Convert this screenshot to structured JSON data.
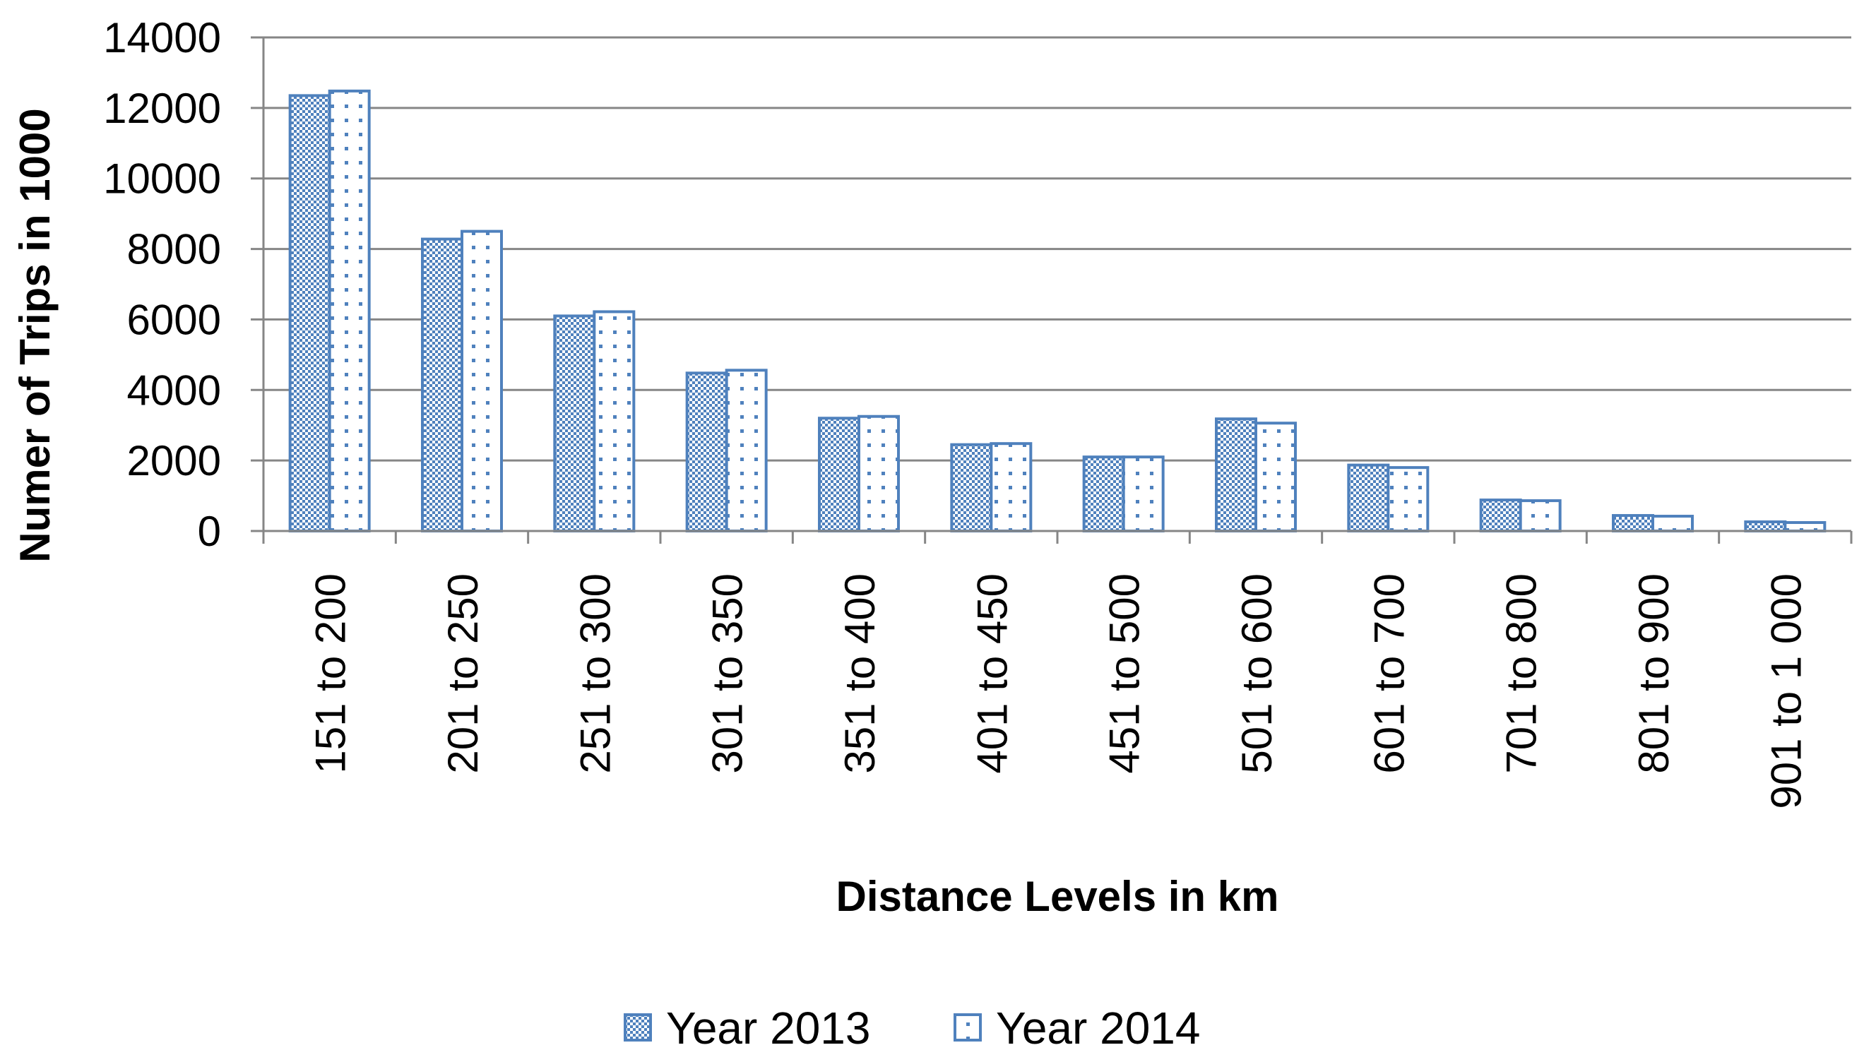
{
  "chart_data": {
    "type": "bar",
    "categories": [
      "151 to 200",
      "201 to 250",
      "251 to 300",
      "301 to 350",
      "351 to 400",
      "401 to 450",
      "451 to 500",
      "501 to 600",
      "601 to 700",
      "701 to 800",
      "801 to 900",
      "901 to 1 000"
    ],
    "series": [
      {
        "name": "Year 2013",
        "values": [
          12350,
          8280,
          6100,
          4480,
          3200,
          2450,
          2100,
          3180,
          1870,
          880,
          440,
          260
        ],
        "color": "#4f81bd",
        "pattern": "checkered"
      },
      {
        "name": "Year 2014",
        "values": [
          12480,
          8500,
          6220,
          4560,
          3250,
          2480,
          2100,
          3060,
          1800,
          860,
          420,
          240
        ],
        "color": "#4f81bd",
        "pattern": "dotted"
      }
    ],
    "xlabel": "Distance Levels in km",
    "ylabel": "Numer of Trips in 1000",
    "ylim": [
      0,
      14000
    ],
    "yticks": [
      "0",
      "2000",
      "4000",
      "6000",
      "8000",
      "10000",
      "12000",
      "14000"
    ],
    "grid": true,
    "legend": "bottom"
  }
}
